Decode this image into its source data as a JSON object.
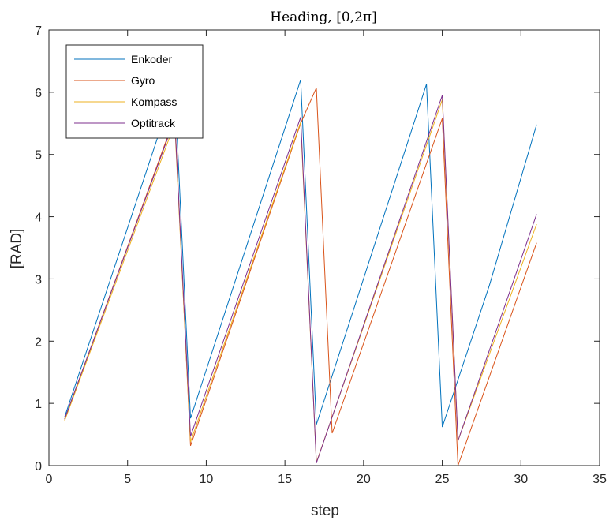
{
  "chart_data": {
    "type": "line",
    "title": "Heading, [0,2π]",
    "xlabel": "step",
    "ylabel": "[RAD]",
    "xlim": [
      0,
      35
    ],
    "ylim": [
      0,
      7
    ],
    "xticks": [
      0,
      5,
      10,
      15,
      20,
      25,
      30,
      35
    ],
    "yticks": [
      0,
      1,
      2,
      3,
      4,
      5,
      6,
      7
    ],
    "grid": false,
    "legend_position": "top-left",
    "series": [
      {
        "name": "Enkoder",
        "color": "#0072BD",
        "points": [
          [
            1,
            0.78
          ],
          [
            8,
            6.1
          ],
          [
            9,
            0.76
          ],
          [
            16,
            6.2
          ],
          [
            17,
            0.66
          ],
          [
            24,
            6.13
          ],
          [
            25,
            0.62
          ],
          [
            28,
            2.9
          ],
          [
            31,
            5.48
          ]
        ]
      },
      {
        "name": "Gyro",
        "color": "#D95319",
        "points": [
          [
            1,
            0.74
          ],
          [
            8,
            5.6
          ],
          [
            9,
            0.32
          ],
          [
            16,
            5.5
          ],
          [
            17,
            6.07
          ],
          [
            18,
            0.52
          ],
          [
            25,
            5.58
          ],
          [
            26,
            0.0
          ],
          [
            31,
            3.58
          ]
        ]
      },
      {
        "name": "Kompass",
        "color": "#EDB120",
        "points": [
          [
            1,
            0.72
          ],
          [
            8,
            5.5
          ],
          [
            9,
            0.38
          ],
          [
            16,
            5.52
          ],
          [
            17,
            0.05
          ],
          [
            25,
            5.88
          ],
          [
            26,
            0.4
          ],
          [
            31,
            3.88
          ]
        ]
      },
      {
        "name": "Optitrack",
        "color": "#7E2F8E",
        "points": [
          [
            1,
            0.75
          ],
          [
            8,
            5.57
          ],
          [
            9,
            0.47
          ],
          [
            16,
            5.6
          ],
          [
            17,
            0.04
          ],
          [
            25,
            5.95
          ],
          [
            26,
            0.4
          ],
          [
            31,
            4.04
          ]
        ]
      }
    ]
  }
}
